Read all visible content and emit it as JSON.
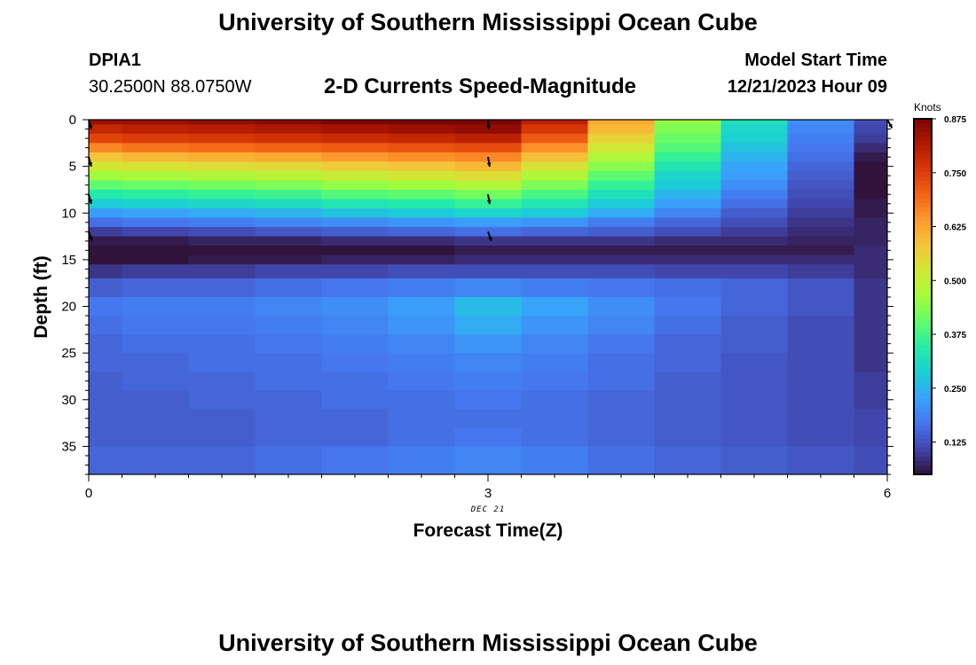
{
  "header": {
    "title": "University of Southern Mississippi Ocean Cube",
    "station_id": "DPIA1",
    "coordinates": "30.2500N  88.0750W",
    "subtitle": "2-D Currents Speed-Magnitude",
    "model_label": "Model Start Time",
    "model_time": "12/21/2023 Hour 09"
  },
  "footer": {
    "title": "University of Southern Mississippi Ocean Cube"
  },
  "colors": {
    "colormap": [
      "#30123b",
      "#4145ab",
      "#4675ed",
      "#39a2fc",
      "#1bcfd4",
      "#24eca6",
      "#61fc6c",
      "#a4fc3b",
      "#d1e834",
      "#f3c63a",
      "#fe9b2d",
      "#f36315",
      "#d93806",
      "#b11901",
      "#7a0402"
    ],
    "arrow": "#000000"
  },
  "chart_data": {
    "type": "heatmap",
    "title": "2-D Currents Speed-Magnitude",
    "xlabel": "Forecast Time(Z)",
    "ylabel": "Depth (ft)",
    "x_date_label": "DEC 21",
    "x_ticks": [
      0,
      3,
      6
    ],
    "xlim": [
      0,
      6
    ],
    "y_ticks": [
      0,
      5,
      10,
      15,
      20,
      25,
      30,
      35
    ],
    "ylim": [
      0,
      38
    ],
    "y_inverted": true,
    "time_steps": [
      0,
      0.5,
      1,
      1.5,
      2,
      2.5,
      3,
      3.5,
      4,
      4.5,
      5,
      5.5,
      6
    ],
    "depth_levels_ft": [
      0,
      1,
      2,
      3,
      4,
      5,
      6,
      7,
      8,
      9,
      10,
      11,
      12,
      13,
      14,
      15,
      16,
      18,
      20,
      22,
      24,
      26,
      28,
      30,
      32,
      34,
      36,
      38
    ],
    "speed_knots": [
      [
        0.84,
        0.84,
        0.85,
        0.86,
        0.87,
        0.88,
        0.88,
        0.8,
        0.62,
        0.45,
        0.32,
        0.2,
        0.12
      ],
      [
        0.79,
        0.8,
        0.81,
        0.82,
        0.83,
        0.84,
        0.85,
        0.76,
        0.6,
        0.43,
        0.3,
        0.19,
        0.11
      ],
      [
        0.74,
        0.75,
        0.76,
        0.77,
        0.78,
        0.79,
        0.8,
        0.71,
        0.56,
        0.41,
        0.29,
        0.18,
        0.1
      ],
      [
        0.66,
        0.68,
        0.69,
        0.7,
        0.71,
        0.72,
        0.73,
        0.65,
        0.52,
        0.39,
        0.27,
        0.17,
        0.08
      ],
      [
        0.58,
        0.6,
        0.61,
        0.62,
        0.64,
        0.65,
        0.66,
        0.59,
        0.48,
        0.36,
        0.25,
        0.16,
        0.06
      ],
      [
        0.52,
        0.53,
        0.54,
        0.55,
        0.57,
        0.58,
        0.6,
        0.53,
        0.44,
        0.33,
        0.23,
        0.15,
        0.05
      ],
      [
        0.46,
        0.47,
        0.48,
        0.49,
        0.51,
        0.52,
        0.54,
        0.48,
        0.4,
        0.3,
        0.22,
        0.14,
        0.02
      ],
      [
        0.4,
        0.41,
        0.42,
        0.43,
        0.45,
        0.46,
        0.48,
        0.43,
        0.36,
        0.28,
        0.2,
        0.13,
        0.05
      ],
      [
        0.34,
        0.35,
        0.36,
        0.37,
        0.39,
        0.4,
        0.42,
        0.38,
        0.32,
        0.25,
        0.18,
        0.12,
        0.05
      ],
      [
        0.28,
        0.29,
        0.3,
        0.31,
        0.33,
        0.34,
        0.36,
        0.33,
        0.28,
        0.22,
        0.16,
        0.11,
        0.06
      ],
      [
        0.22,
        0.23,
        0.24,
        0.25,
        0.27,
        0.28,
        0.3,
        0.28,
        0.24,
        0.19,
        0.14,
        0.1,
        0.06
      ],
      [
        0.16,
        0.17,
        0.18,
        0.19,
        0.2,
        0.21,
        0.22,
        0.21,
        0.18,
        0.15,
        0.12,
        0.09,
        0.07
      ],
      [
        0.1,
        0.11,
        0.12,
        0.13,
        0.14,
        0.15,
        0.16,
        0.15,
        0.14,
        0.12,
        0.1,
        0.08,
        0.07
      ],
      [
        0.06,
        0.06,
        0.07,
        0.07,
        0.08,
        0.08,
        0.09,
        0.09,
        0.09,
        0.08,
        0.08,
        0.07,
        0.07
      ],
      [
        0.03,
        0.03,
        0.04,
        0.04,
        0.05,
        0.05,
        0.06,
        0.06,
        0.06,
        0.06,
        0.06,
        0.06,
        0.08
      ],
      [
        0.05,
        0.05,
        0.06,
        0.06,
        0.07,
        0.07,
        0.08,
        0.08,
        0.08,
        0.08,
        0.08,
        0.08,
        0.08
      ],
      [
        0.09,
        0.1,
        0.1,
        0.11,
        0.11,
        0.12,
        0.12,
        0.12,
        0.12,
        0.11,
        0.11,
        0.1,
        0.08
      ],
      [
        0.14,
        0.15,
        0.15,
        0.16,
        0.17,
        0.18,
        0.19,
        0.18,
        0.17,
        0.16,
        0.15,
        0.13,
        0.09
      ],
      [
        0.17,
        0.18,
        0.18,
        0.19,
        0.2,
        0.22,
        0.26,
        0.23,
        0.2,
        0.17,
        0.15,
        0.13,
        0.09
      ],
      [
        0.16,
        0.17,
        0.17,
        0.18,
        0.19,
        0.21,
        0.24,
        0.21,
        0.19,
        0.16,
        0.14,
        0.12,
        0.09
      ],
      [
        0.15,
        0.16,
        0.16,
        0.17,
        0.18,
        0.19,
        0.21,
        0.19,
        0.17,
        0.15,
        0.14,
        0.12,
        0.09
      ],
      [
        0.15,
        0.15,
        0.16,
        0.16,
        0.17,
        0.18,
        0.19,
        0.18,
        0.16,
        0.15,
        0.13,
        0.12,
        0.09
      ],
      [
        0.14,
        0.15,
        0.15,
        0.16,
        0.16,
        0.17,
        0.18,
        0.17,
        0.16,
        0.14,
        0.13,
        0.12,
        0.1
      ],
      [
        0.14,
        0.14,
        0.15,
        0.15,
        0.16,
        0.16,
        0.17,
        0.16,
        0.15,
        0.14,
        0.13,
        0.12,
        0.1
      ],
      [
        0.14,
        0.14,
        0.14,
        0.15,
        0.15,
        0.16,
        0.16,
        0.16,
        0.15,
        0.14,
        0.13,
        0.12,
        0.11
      ],
      [
        0.14,
        0.14,
        0.14,
        0.15,
        0.15,
        0.16,
        0.17,
        0.16,
        0.15,
        0.14,
        0.13,
        0.12,
        0.11
      ],
      [
        0.15,
        0.15,
        0.15,
        0.16,
        0.17,
        0.18,
        0.19,
        0.18,
        0.16,
        0.15,
        0.14,
        0.13,
        0.12
      ],
      [
        0.15,
        0.15,
        0.15,
        0.16,
        0.17,
        0.18,
        0.19,
        0.18,
        0.16,
        0.15,
        0.14,
        0.13,
        0.12
      ]
    ],
    "vectors": [
      {
        "time": 0,
        "depth": 0,
        "direction_deg": 165
      },
      {
        "time": 0,
        "depth": 4,
        "direction_deg": 165
      },
      {
        "time": 0,
        "depth": 8,
        "direction_deg": 165
      },
      {
        "time": 0,
        "depth": 12,
        "direction_deg": 160
      },
      {
        "time": 3,
        "depth": 0,
        "direction_deg": 175
      },
      {
        "time": 3,
        "depth": 4,
        "direction_deg": 170
      },
      {
        "time": 3,
        "depth": 8,
        "direction_deg": 170
      },
      {
        "time": 3,
        "depth": 12,
        "direction_deg": 160
      },
      {
        "time": 6,
        "depth": 0,
        "direction_deg": 150
      }
    ],
    "colorbar": {
      "label": "Knots",
      "range": [
        0.05,
        0.875
      ],
      "tick_values": [
        0.125,
        0.25,
        0.375,
        0.5,
        0.625,
        0.75,
        0.875
      ],
      "tick_labels": [
        "0.125",
        "0.250",
        "0.375",
        "0.500",
        "0.625",
        "0.750",
        "0.875"
      ]
    }
  }
}
